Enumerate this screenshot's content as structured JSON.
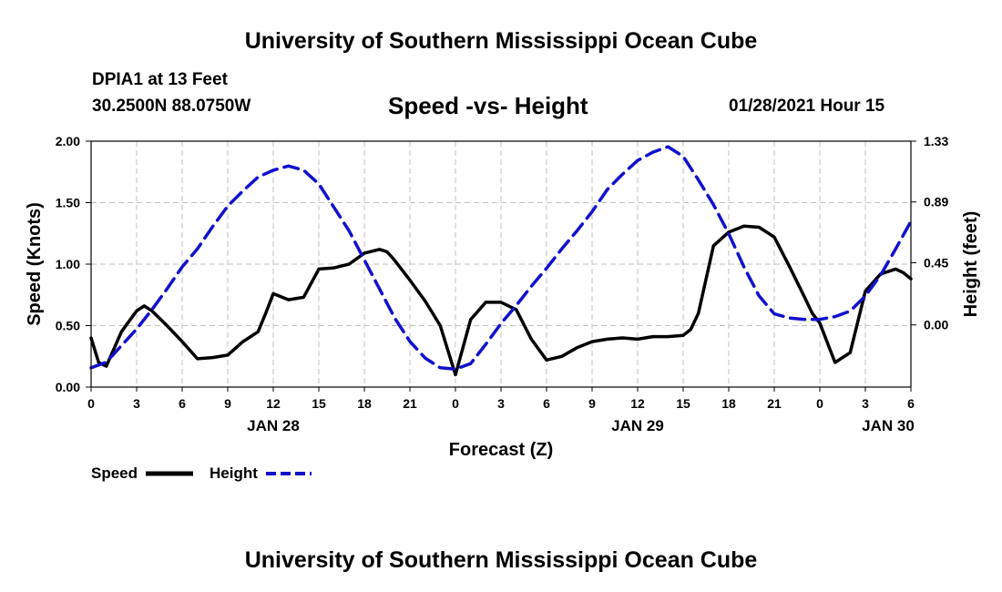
{
  "header": {
    "title": "University of Southern Mississippi Ocean Cube",
    "station": "DPIA1 at 13 Feet",
    "location": "30.2500N 88.0750W",
    "timestamp": "01/28/2021 Hour 15"
  },
  "footer": {
    "title": "University of Southern Mississippi Ocean Cube"
  },
  "legend": {
    "speed_label": "Speed",
    "height_label": "Height"
  },
  "colors": {
    "speed": "#000000",
    "height": "#1111cc",
    "grid": "#c0c0c0"
  },
  "chart_data": {
    "type": "line",
    "title": "Speed -vs- Height",
    "xlabel": "Forecast (Z)",
    "ylabel": "Speed (Knots)",
    "ylabel_right": "Height (feet)",
    "ylim": [
      0,
      2.0
    ],
    "ylim_right": [
      -0.45,
      1.33
    ],
    "x_range": [
      0,
      54
    ],
    "x_ticks": [
      0,
      3,
      6,
      9,
      12,
      15,
      18,
      21,
      24,
      27,
      30,
      33,
      36,
      39,
      42,
      45,
      48,
      51,
      54
    ],
    "x_tick_labels": [
      "0",
      "3",
      "6",
      "9",
      "12",
      "15",
      "18",
      "21",
      "0",
      "3",
      "6",
      "9",
      "12",
      "15",
      "18",
      "21",
      "0",
      "3",
      "6"
    ],
    "y_ticks": [
      0,
      0.5,
      1.0,
      1.5,
      2.0
    ],
    "y_tick_labels": [
      "0.00",
      "0.50",
      "1.00",
      "1.50",
      "2.00"
    ],
    "y_ticks_right": [
      0,
      0.45,
      0.89,
      1.33
    ],
    "y_tick_labels_right": [
      "0.00",
      "0.45",
      "0.89",
      "1.33"
    ],
    "date_labels": [
      {
        "x": 12,
        "label": "JAN 28"
      },
      {
        "x": 36,
        "label": "JAN 29"
      },
      {
        "x": 52.5,
        "label": "JAN 30"
      }
    ],
    "series": [
      {
        "name": "Speed",
        "axis": "left",
        "style": "solid",
        "x": [
          0,
          0.5,
          1,
          2,
          3,
          3.5,
          4,
          5,
          6,
          7,
          8,
          9,
          10,
          11,
          11.5,
          12,
          13,
          14,
          15,
          16,
          17,
          18,
          19,
          19.5,
          20,
          21,
          22,
          23,
          24,
          25,
          26,
          27,
          28,
          29,
          30,
          31,
          32,
          33,
          34,
          35,
          36,
          37,
          38,
          39,
          39.5,
          40,
          41,
          42,
          43,
          44,
          45,
          46,
          47,
          47.5,
          48,
          49,
          50,
          51,
          52,
          53,
          53.5,
          54
        ],
        "y": [
          0.4,
          0.2,
          0.17,
          0.45,
          0.62,
          0.66,
          0.62,
          0.5,
          0.37,
          0.23,
          0.24,
          0.26,
          0.37,
          0.45,
          0.6,
          0.76,
          0.71,
          0.73,
          0.96,
          0.97,
          1.0,
          1.09,
          1.12,
          1.1,
          1.03,
          0.87,
          0.7,
          0.5,
          0.1,
          0.55,
          0.69,
          0.69,
          0.63,
          0.39,
          0.22,
          0.25,
          0.32,
          0.37,
          0.39,
          0.4,
          0.39,
          0.41,
          0.41,
          0.42,
          0.47,
          0.6,
          1.15,
          1.26,
          1.31,
          1.3,
          1.22,
          0.98,
          0.73,
          0.6,
          0.52,
          0.2,
          0.28,
          0.78,
          0.92,
          0.96,
          0.93,
          0.88
        ]
      },
      {
        "name": "Height",
        "axis": "right",
        "style": "dashed",
        "x": [
          0,
          1,
          2,
          3,
          4,
          5,
          6,
          7,
          8,
          9,
          10,
          11,
          12,
          13,
          14,
          15,
          16,
          17,
          18,
          19,
          20,
          21,
          22,
          23,
          24,
          25,
          26,
          27,
          28,
          29,
          30,
          31,
          32,
          33,
          34,
          35,
          36,
          37,
          38,
          39,
          40,
          41,
          42,
          43,
          44,
          45,
          46,
          47,
          48,
          49,
          50,
          51,
          52,
          53,
          54
        ],
        "y": [
          -0.31,
          -0.27,
          -0.15,
          -0.03,
          0.11,
          0.26,
          0.42,
          0.55,
          0.71,
          0.86,
          0.97,
          1.07,
          1.12,
          1.15,
          1.12,
          1.02,
          0.85,
          0.68,
          0.47,
          0.26,
          0.05,
          -0.12,
          -0.24,
          -0.31,
          -0.32,
          -0.28,
          -0.14,
          0.01,
          0.14,
          0.28,
          0.41,
          0.55,
          0.68,
          0.82,
          0.98,
          1.09,
          1.19,
          1.25,
          1.29,
          1.22,
          1.05,
          0.87,
          0.66,
          0.42,
          0.21,
          0.08,
          0.05,
          0.04,
          0.04,
          0.06,
          0.1,
          0.21,
          0.36,
          0.55,
          0.75
        ]
      }
    ]
  }
}
